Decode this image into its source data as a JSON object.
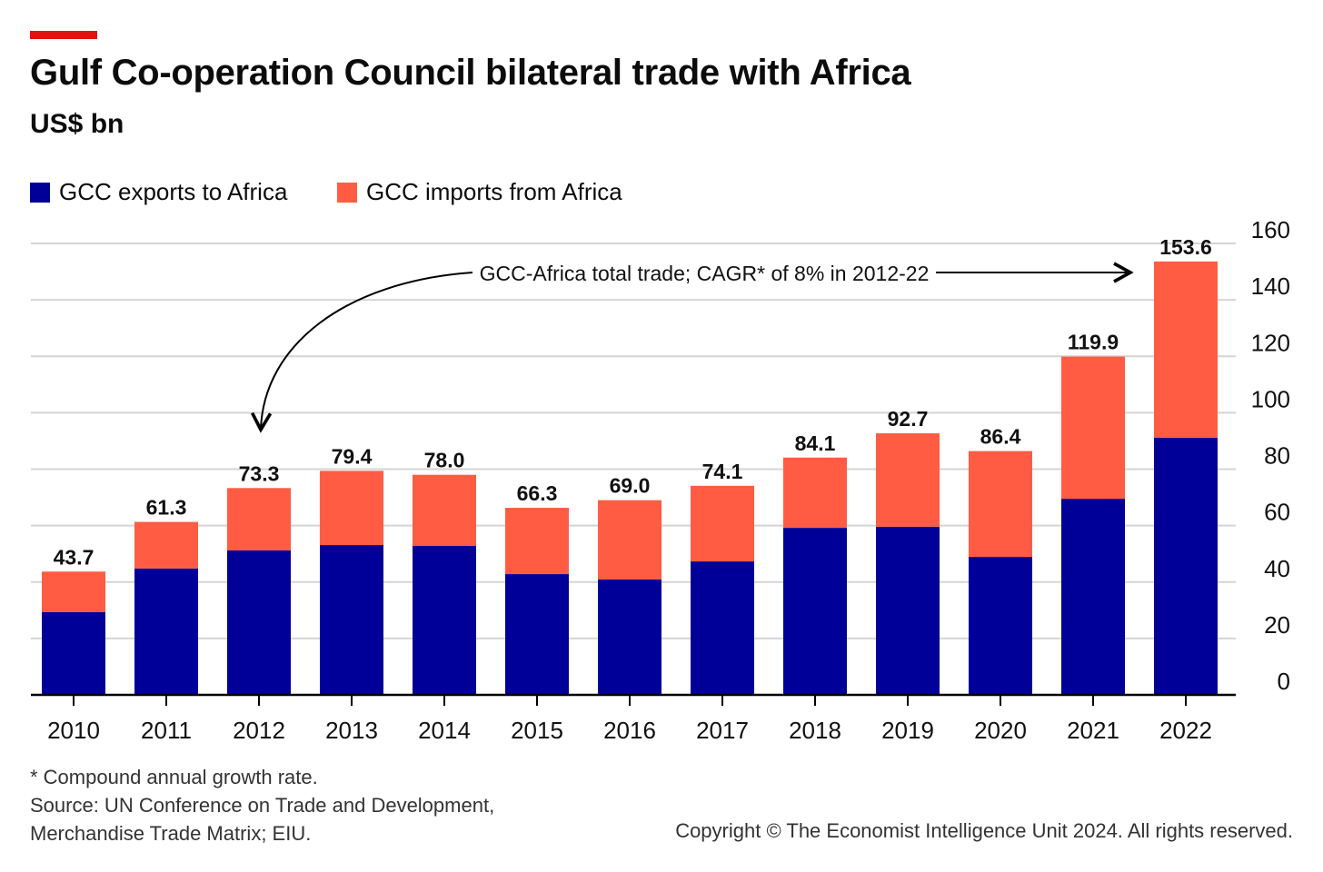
{
  "title": "Gulf Co-operation Council bilateral trade with Africa",
  "subtitle": "US$ bn",
  "colors": {
    "accent_bar": "#E3120B",
    "exports": "#000099",
    "imports": "#FF5C43"
  },
  "chart_data": {
    "type": "bar",
    "stacked": true,
    "categories": [
      "2010",
      "2011",
      "2012",
      "2013",
      "2014",
      "2015",
      "2016",
      "2017",
      "2018",
      "2019",
      "2020",
      "2021",
      "2022"
    ],
    "series": [
      {
        "name": "GCC exports to Africa",
        "values": [
          29.3,
          44.8,
          51.2,
          53.1,
          52.8,
          42.8,
          40.9,
          47.3,
          59.2,
          59.6,
          48.9,
          69.5,
          91.1
        ]
      },
      {
        "name": "GCC imports from Africa",
        "values": [
          14.4,
          16.5,
          22.1,
          26.3,
          25.2,
          23.5,
          28.1,
          26.8,
          24.9,
          33.1,
          37.5,
          50.4,
          62.5
        ]
      }
    ],
    "totals": [
      "43.7",
      "61.3",
      "73.3",
      "79.4",
      "78.0",
      "66.3",
      "69.0",
      "74.1",
      "84.1",
      "92.7",
      "86.4",
      "119.9",
      "153.6"
    ],
    "ylim": [
      0,
      160
    ],
    "yticks": [
      "0",
      "20",
      "40",
      "60",
      "80",
      "100",
      "120",
      "140",
      "160"
    ],
    "y_axis_side": "right",
    "grid": true,
    "legend_position": "top-left",
    "annotation": "GCC-Africa total trade; CAGR* of 8% in 2012-22"
  },
  "footnote": "* Compound annual growth rate.",
  "source_line1": "Source: UN Conference on Trade and Development,",
  "source_line2": "Merchandise Trade Matrix; EIU.",
  "copyright": "Copyright © The Economist Intelligence Unit 2024. All rights reserved."
}
